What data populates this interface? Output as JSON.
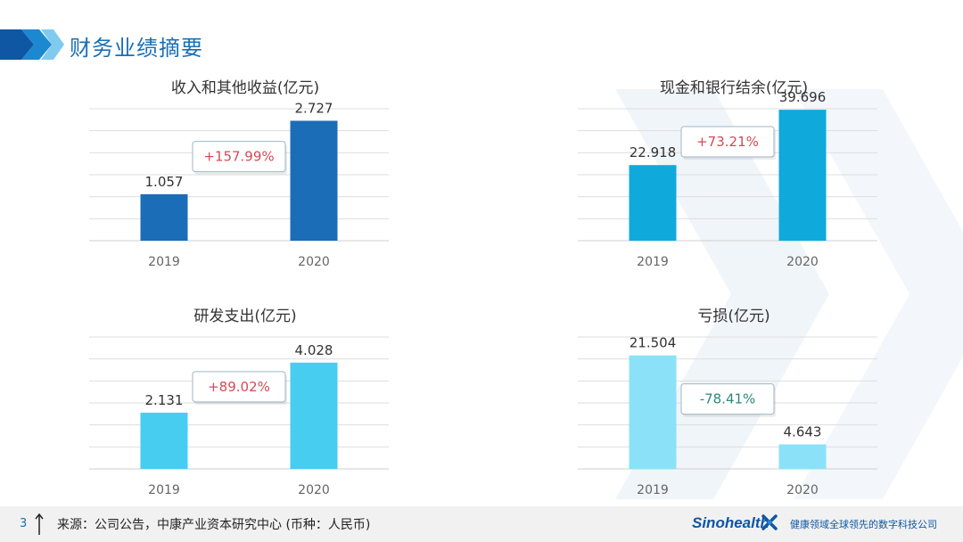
{
  "header": {
    "title": "财务业绩摘要"
  },
  "chart_data": [
    {
      "type": "bar",
      "title": "收入和其他收益(亿元)",
      "categories": [
        "2019",
        "2020"
      ],
      "values": [
        1.057,
        2.727
      ],
      "value_labels": [
        "1.057",
        "2.727"
      ],
      "ylim": [
        0,
        3
      ],
      "grid": true,
      "color": "#1b6db8",
      "change_label": "+157.99%",
      "change_color": "#d24a57"
    },
    {
      "type": "bar",
      "title": "现金和银行结余(亿元)",
      "categories": [
        "2019",
        "2020"
      ],
      "values": [
        22.918,
        39.696
      ],
      "value_labels": [
        "22.918",
        "39.696"
      ],
      "ylim": [
        0,
        40
      ],
      "grid": true,
      "color": "#10a9dc",
      "change_label": "+73.21%",
      "change_color": "#d24a57"
    },
    {
      "type": "bar",
      "title": "研发支出(亿元)",
      "categories": [
        "2019",
        "2020"
      ],
      "values": [
        2.131,
        4.028
      ],
      "value_labels": [
        "2.131",
        "4.028"
      ],
      "ylim": [
        0,
        5
      ],
      "grid": true,
      "color": "#46cdf0",
      "change_label": "+89.02%",
      "change_color": "#d24a57"
    },
    {
      "type": "bar",
      "title": "亏损(亿元)",
      "categories": [
        "2019",
        "2020"
      ],
      "values": [
        21.504,
        4.643
      ],
      "value_labels": [
        "21.504",
        "4.643"
      ],
      "ylim": [
        0,
        25
      ],
      "grid": true,
      "color": "#8be2f8",
      "change_label": "-78.41%",
      "change_color": "#2a8a7a"
    }
  ],
  "footer": {
    "page_number": "3",
    "source": "来源：公司公告，中康产业资本研究中心 (币种：人民币)",
    "brand": "Sinohealth",
    "slogan": "健康领域全球领先的数字科技公司"
  }
}
